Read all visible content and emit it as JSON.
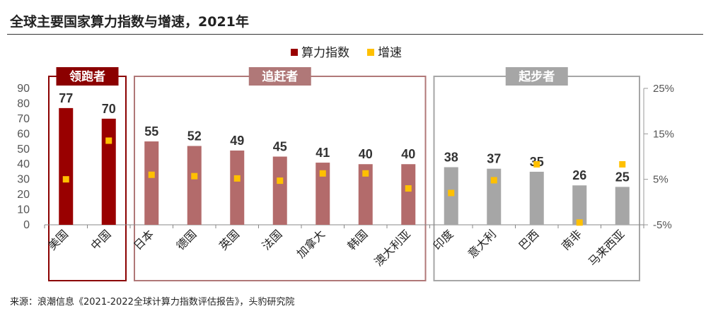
{
  "header": {
    "title": "全球主要国家算力指数与增速，2021年"
  },
  "footer": {
    "source": "来源：浪潮信息《2021-2022全球计算力指数评估报告》，头豹研究院"
  },
  "colors": {
    "leader": "#990000",
    "chaser": "#B36B6B",
    "starter": "#A6A6A6",
    "growth": "#FFC000",
    "leader_frame": "#8B0000",
    "chaser_frame": "#B07878",
    "starter_frame": "#A6A6A6"
  },
  "chart_data": {
    "type": "bar",
    "title": "全球主要国家算力指数与增速，2021年",
    "categories": [
      "美国",
      "中国",
      "日本",
      "德国",
      "英国",
      "法国",
      "加拿大",
      "韩国",
      "澳大利亚",
      "印度",
      "意大利",
      "巴西",
      "南非",
      "马来西亚"
    ],
    "series": [
      {
        "name": "算力指数",
        "axis": "left",
        "values": [
          77,
          70,
          55,
          52,
          49,
          45,
          41,
          40,
          40,
          38,
          37,
          35,
          26,
          25
        ]
      },
      {
        "name": "增速",
        "axis": "right",
        "unit": "%",
        "values": [
          5,
          13.5,
          6,
          5.7,
          5.2,
          4.7,
          6.3,
          6.3,
          3,
          2,
          4.8,
          8.3,
          -4.5,
          8.3
        ]
      }
    ],
    "groups": [
      {
        "name": "领跑者",
        "tier": "leader",
        "members": [
          0,
          1
        ]
      },
      {
        "name": "追赶者",
        "tier": "chaser",
        "members": [
          2,
          3,
          4,
          5,
          6,
          7,
          8
        ]
      },
      {
        "name": "起步者",
        "tier": "starter",
        "members": [
          9,
          10,
          11,
          12,
          13
        ]
      }
    ],
    "ylim": [
      0,
      90
    ],
    "yticks": [
      0,
      10,
      20,
      30,
      40,
      50,
      60,
      70,
      80,
      90
    ],
    "y2lim": [
      -5,
      25
    ],
    "y2ticks": [
      "-5%",
      "5%",
      "15%",
      "25%"
    ],
    "y2tick_values": [
      -5,
      5,
      15,
      25
    ],
    "legend": {
      "position": "top-center",
      "labels": [
        "算力指数",
        "增速"
      ]
    }
  }
}
